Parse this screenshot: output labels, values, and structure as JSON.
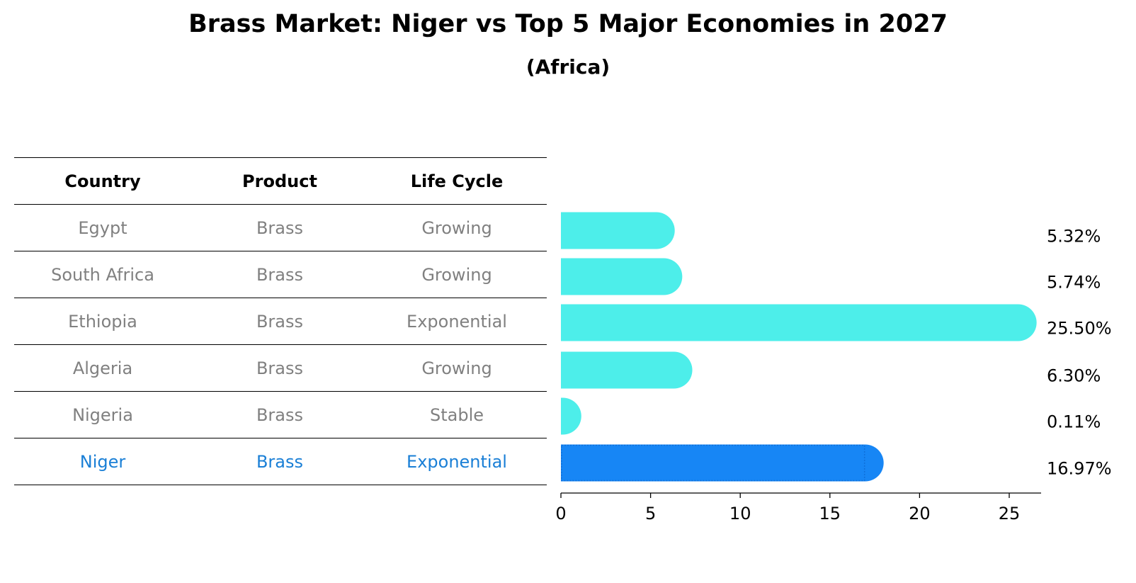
{
  "title": "Brass Market: Niger vs Top 5 Major Economies in 2027",
  "subtitle": "(Africa)",
  "table": {
    "headers": [
      "Country",
      "Product",
      "Life Cycle"
    ],
    "rows": [
      {
        "country": "Egypt",
        "product": "Brass",
        "life_cycle": "Growing"
      },
      {
        "country": "South Africa",
        "product": "Brass",
        "life_cycle": "Growing"
      },
      {
        "country": "Ethiopia",
        "product": "Brass",
        "life_cycle": "Exponential"
      },
      {
        "country": "Algeria",
        "product": "Brass",
        "life_cycle": "Growing"
      },
      {
        "country": "Nigeria",
        "product": "Brass",
        "life_cycle": "Stable"
      },
      {
        "country": "Niger",
        "product": "Brass",
        "life_cycle": "Exponential"
      }
    ]
  },
  "chart_data": {
    "type": "bar",
    "orientation": "horizontal",
    "categories": [
      "Egypt",
      "South Africa",
      "Ethiopia",
      "Algeria",
      "Nigeria",
      "Niger"
    ],
    "values": [
      5.32,
      5.74,
      25.5,
      6.3,
      0.11,
      16.97
    ],
    "value_labels": [
      "5.32%",
      "5.74%",
      "25.50%",
      "6.30%",
      "0.11%",
      "16.97%"
    ],
    "highlight": "Niger",
    "colors": {
      "default": "#4deeea",
      "highlight": "#1786f5"
    },
    "xlim": [
      0,
      26.8
    ],
    "xticks": [
      0,
      5,
      10,
      15,
      20,
      25
    ],
    "xtick_labels": [
      "0",
      "5",
      "10",
      "15",
      "20",
      "25"
    ],
    "title": "Brass Market: Niger vs Top 5 Major Economies in 2027",
    "xlabel": "",
    "ylabel": "",
    "grid": false
  }
}
